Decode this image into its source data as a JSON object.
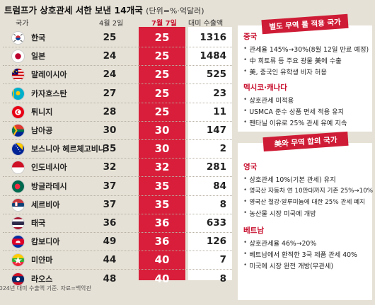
{
  "title": {
    "main": "트럼프가 상호관세 서한 보낸 14개국",
    "unit": "(단위=%·억달러)"
  },
  "table": {
    "headers": {
      "country": "국가",
      "april": "4월 2일",
      "july": "7월 7일",
      "export": "대미 수출액"
    },
    "rows": [
      {
        "country": "한국",
        "flag": "south-korea-flag",
        "april": "25",
        "july": "25",
        "export": "1316"
      },
      {
        "country": "일본",
        "flag": "japan-flag",
        "april": "24",
        "july": "25",
        "export": "1484"
      },
      {
        "country": "말레이시아",
        "flag": "malaysia-flag",
        "april": "24",
        "july": "25",
        "export": "525"
      },
      {
        "country": "카자흐스탄",
        "flag": "kazakhstan-flag",
        "april": "27",
        "july": "25",
        "export": "23"
      },
      {
        "country": "튀니지",
        "flag": "tunisia-flag",
        "april": "28",
        "july": "25",
        "export": "11"
      },
      {
        "country": "남아공",
        "flag": "south-africa-flag",
        "april": "30",
        "july": "30",
        "export": "147"
      },
      {
        "country": "보스니아 헤르체고비나",
        "flag": "bosnia-flag",
        "april": "35",
        "july": "30",
        "export": "2"
      },
      {
        "country": "인도네시아",
        "flag": "indonesia-flag",
        "april": "32",
        "july": "32",
        "export": "281"
      },
      {
        "country": "방글라데시",
        "flag": "bangladesh-flag",
        "april": "37",
        "july": "35",
        "export": "84"
      },
      {
        "country": "세르비아",
        "flag": "serbia-flag",
        "april": "37",
        "july": "35",
        "export": "8"
      },
      {
        "country": "태국",
        "flag": "thailand-flag",
        "april": "36",
        "july": "36",
        "export": "633"
      },
      {
        "country": "캄보디아",
        "flag": "cambodia-flag",
        "april": "49",
        "july": "36",
        "export": "126"
      },
      {
        "country": "미얀마",
        "flag": "myanmar-flag",
        "april": "44",
        "july": "40",
        "export": "7"
      },
      {
        "country": "라오스",
        "flag": "laos-flag",
        "april": "48",
        "july": "40",
        "export": "8"
      }
    ],
    "footnote": "*2024년 대미 수출액 기준. 자료=백악관"
  },
  "panel1": {
    "banner": "별도 무역 룰 적용 국가",
    "sections": [
      {
        "title": "중국",
        "items": [
          "관세율 145%→30%(8월 12일 만료 예정)",
          "中 희토류 등 주요 광물 美에 수출",
          "美, 중국인 유학생 비자 허용"
        ]
      },
      {
        "title": "멕시코·캐나다",
        "items": [
          "상호관세 미적용",
          "USMCA 준수 상품 면세 적용 유지",
          "펜타닐 이유로 25% 관세 유예 지속"
        ]
      }
    ]
  },
  "panel2": {
    "banner": "美와 무역 합의 국가",
    "sections": [
      {
        "title": "영국",
        "items": [
          "상호관세 10%(기본 관세) 유지",
          "영국산 자동차 연 10만대까지 기존 25%→10%",
          "영국산 철강·알루미늄에 대한 25% 관세 폐지",
          "농산물 시장 미국에 개방"
        ]
      },
      {
        "title": "베트남",
        "items": [
          "상호관세율 46%→20%",
          "베트남에서 환적한 3국 제품 관세 40%",
          "미국에 시장 완전 개방(무관세)"
        ]
      }
    ]
  },
  "colors": {
    "accent_red": "#d81e3a",
    "background": "#e6e1d6",
    "section_title": "#c8102e"
  }
}
